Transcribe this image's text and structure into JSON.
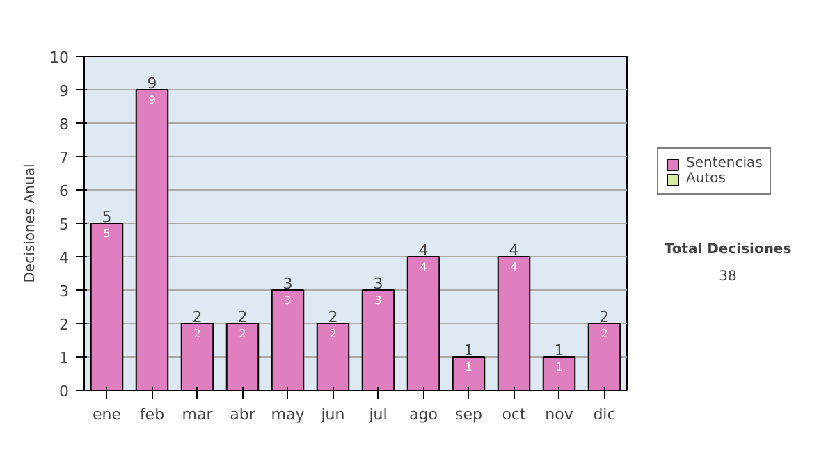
{
  "chart_data": {
    "type": "bar",
    "ylabel": "Decisiones Anual",
    "categories": [
      "ene",
      "feb",
      "mar",
      "abr",
      "may",
      "jun",
      "jul",
      "ago",
      "sep",
      "oct",
      "nov",
      "dic"
    ],
    "stacked": true,
    "series": [
      {
        "name": "Sentencias",
        "color": "#e07fc0",
        "values": [
          5,
          9,
          2,
          2,
          3,
          2,
          3,
          4,
          1,
          4,
          1,
          2
        ]
      },
      {
        "name": "Autos",
        "color": "#d8eca0",
        "values": [
          null,
          null,
          null,
          null,
          null,
          null,
          null,
          null,
          null,
          null,
          null,
          null
        ]
      }
    ],
    "data_labels": true,
    "totals": [
      "5",
      "9",
      "2",
      "2",
      "3",
      "2",
      "3",
      "4",
      "1",
      "4",
      "1",
      "2"
    ],
    "ylim": [
      0,
      10
    ],
    "yticks": [
      0,
      1,
      2,
      3,
      4,
      5,
      6,
      7,
      8,
      9,
      10
    ],
    "grid": "y",
    "legend": "right",
    "annotations": [
      "Total Decisiones",
      "38"
    ]
  }
}
